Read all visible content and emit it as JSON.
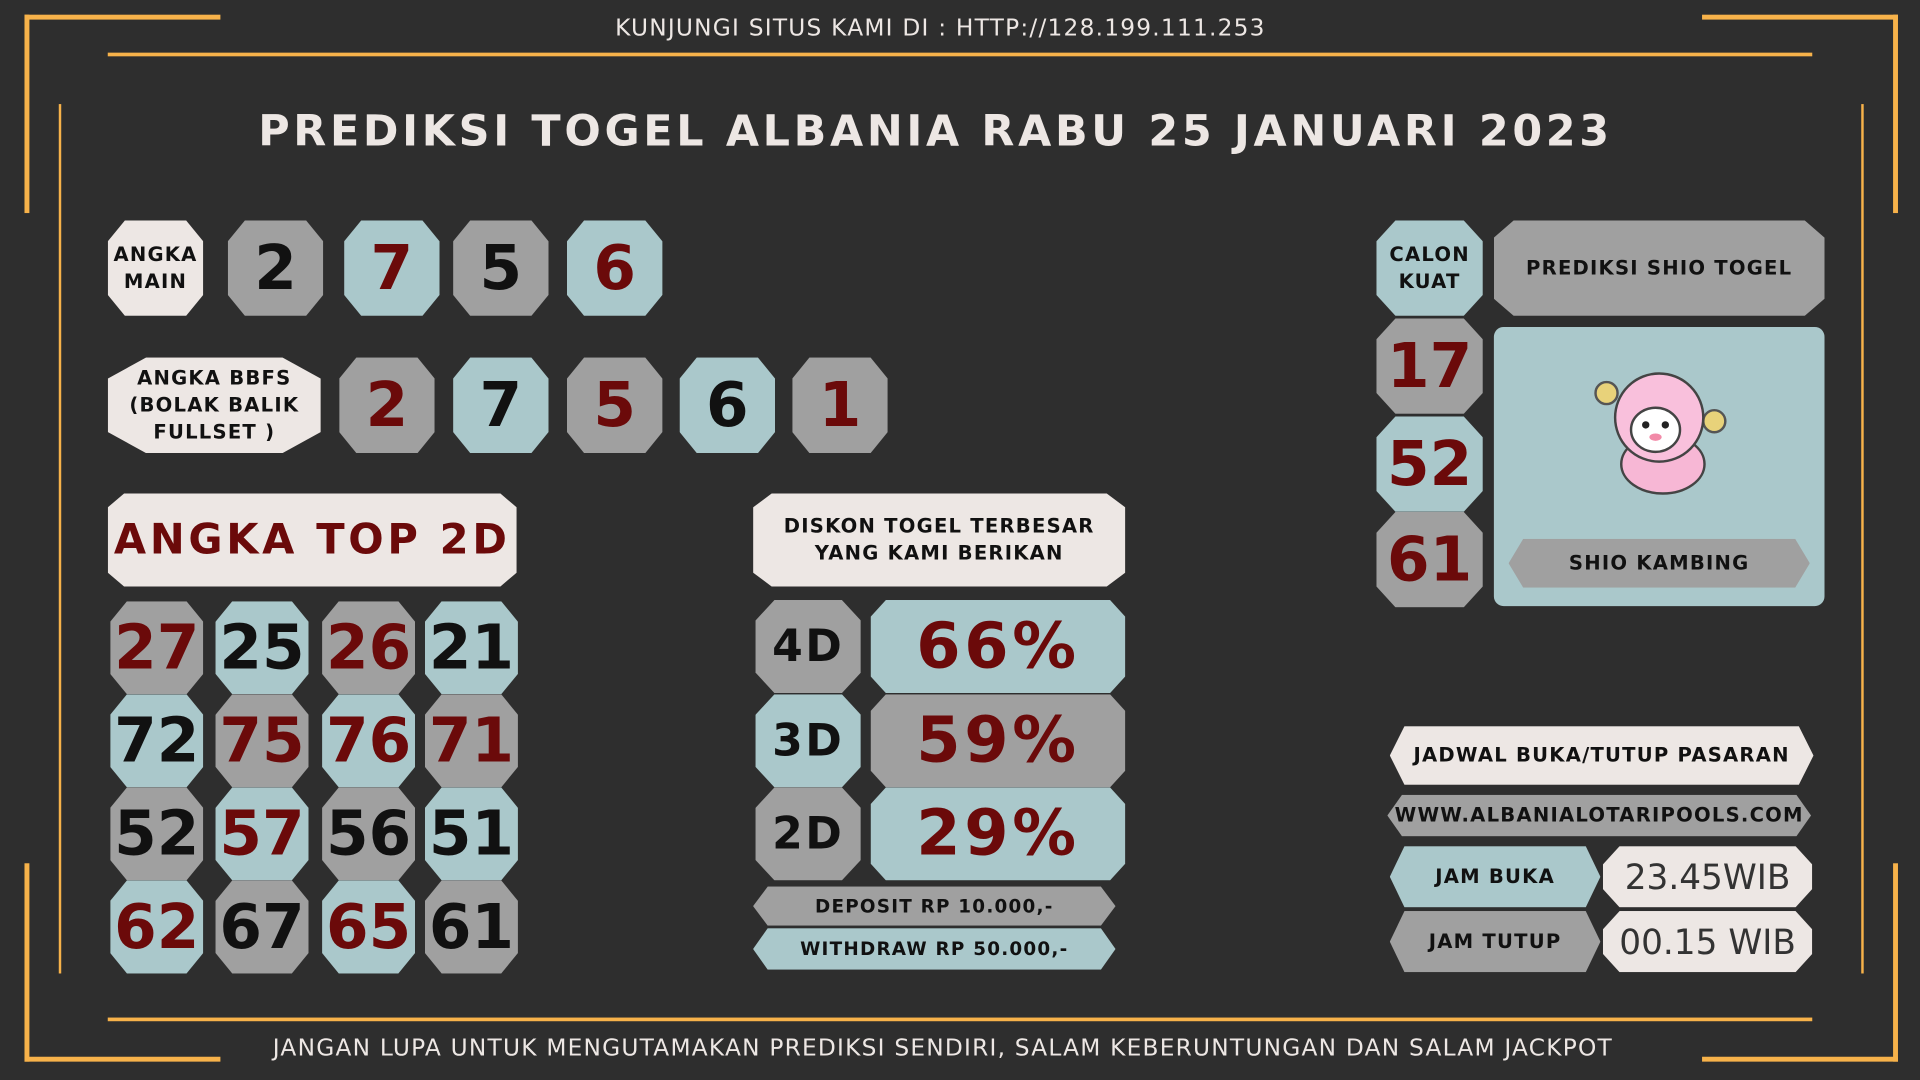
{
  "header": {
    "visit": "KUNJUNGI SITUS KAMI DI : HTTP://128.199.111.253",
    "title": "PREDIKSI TOGEL ALBANIA RABU 25 JANUARI 2023"
  },
  "angka_main": {
    "label": "ANGKA MAIN",
    "numbers": [
      "2",
      "7",
      "5",
      "6"
    ]
  },
  "bbfs": {
    "label": "ANGKA BBFS (BOLAK BALIK FULLSET )",
    "numbers": [
      "2",
      "7",
      "5",
      "6",
      "1"
    ]
  },
  "top2d": {
    "label": "ANGKA TOP 2D",
    "rows": [
      [
        "27",
        "25",
        "26",
        "21"
      ],
      [
        "72",
        "75",
        "76",
        "71"
      ],
      [
        "52",
        "57",
        "56",
        "51"
      ],
      [
        "62",
        "67",
        "65",
        "61"
      ]
    ]
  },
  "diskon": {
    "label": "DISKON TOGEL TERBESAR YANG KAMI BERIKAN",
    "items": [
      {
        "type": "4D",
        "value": "66%"
      },
      {
        "type": "3D",
        "value": "59%"
      },
      {
        "type": "2D",
        "value": "29%"
      }
    ],
    "deposit": "DEPOSIT RP 10.000,-",
    "withdraw": "WITHDRAW RP 50.000,-"
  },
  "calon_kuat": {
    "label": "CALON KUAT",
    "numbers": [
      "17",
      "52",
      "61"
    ]
  },
  "shio": {
    "header": "PREDIKSI SHIO TOGEL",
    "name": "SHIO KAMBING",
    "icon": "sheep-icon"
  },
  "jadwal": {
    "label": "JADWAL BUKA/TUTUP PASARAN",
    "site": "WWW.ALBANIALOTARIPOOLS.COM",
    "buka_label": "JAM BUKA",
    "buka": "23.45WIB",
    "tutup_label": "JAM TUTUP",
    "tutup": "00.15 WIB"
  },
  "footer": "JANGAN LUPA UNTUK MENGUTAMAKAN PREDIKSI SENDIRI, SALAM KEBERUNTUNGAN DAN SALAM JACKPOT",
  "colors": {
    "accent": "#f7b24a",
    "gray": "#a0a0a0",
    "teal": "#aac8cb",
    "cream": "#ede7e4",
    "red": "#6b0a0a"
  }
}
